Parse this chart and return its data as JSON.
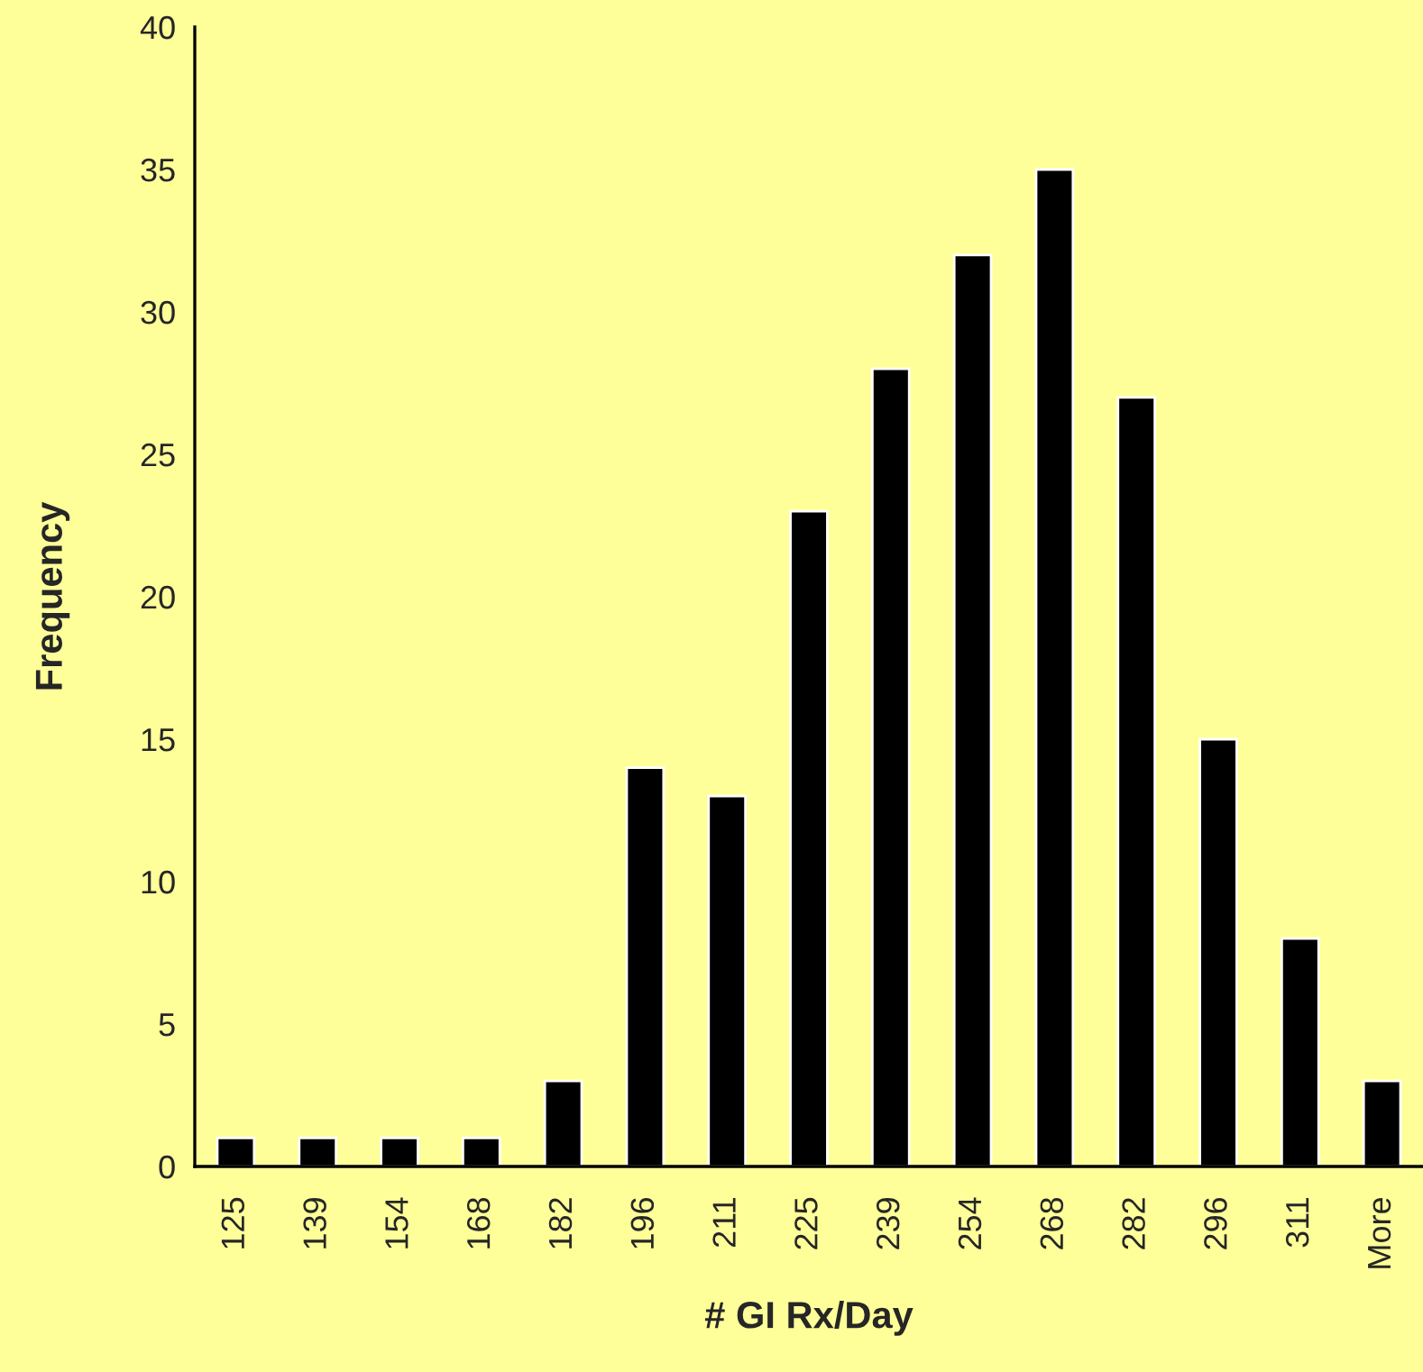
{
  "chart_data": {
    "type": "bar",
    "xlabel": "# GI Rx/Day",
    "ylabel": "Frequency",
    "categories": [
      "125",
      "139",
      "154",
      "168",
      "182",
      "196",
      "211",
      "225",
      "239",
      "254",
      "268",
      "282",
      "296",
      "311",
      "More"
    ],
    "values": [
      1,
      1,
      1,
      1,
      3,
      14,
      13,
      23,
      28,
      32,
      35,
      27,
      15,
      8,
      3
    ],
    "color": "#000000",
    "ylim": [
      0,
      40
    ],
    "yticks": [
      0,
      5,
      10,
      15,
      20,
      25,
      30,
      35,
      40
    ],
    "grid": false,
    "legend": false
  }
}
